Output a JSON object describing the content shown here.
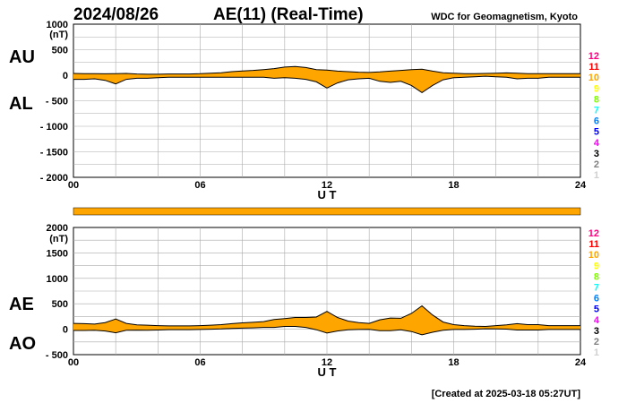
{
  "header": {
    "date": "2024/08/26",
    "title": "AE(11) (Real-Time)",
    "source": "WDC for Geomagnetism, Kyoto"
  },
  "footer": {
    "created": "[Created at 2025-03-18 05:27UT]"
  },
  "station_scale": {
    "labels": [
      "12",
      "11",
      "10",
      "9",
      "8",
      "7",
      "6",
      "5",
      "4",
      "3",
      "2",
      "1"
    ],
    "colors": [
      "#ff0080",
      "#ff0000",
      "#ffa500",
      "#ffff00",
      "#80ff00",
      "#00ffff",
      "#0080ff",
      "#0000ff",
      "#ff00ff",
      "#000000",
      "#808080",
      "#d0d0d0"
    ]
  },
  "colors": {
    "fill": "#ffa500",
    "line": "#000000",
    "grid": "#aaaaaa",
    "coverage_bar": "#ffa500"
  },
  "chart_data": [
    {
      "type": "area",
      "name": "AU/AL",
      "xlabel": "U T",
      "ylabel": "(nT)",
      "xlim": [
        0,
        24
      ],
      "ylim": [
        -2000,
        1000
      ],
      "xticks": [
        "00",
        "06",
        "12",
        "18",
        "24"
      ],
      "yticks": [
        "1000",
        "500",
        "0",
        "- 500",
        "- 1000",
        "- 1500",
        "- 2000"
      ],
      "series_labels": [
        "AU",
        "AL"
      ],
      "x": [
        0,
        0.5,
        1,
        1.5,
        2,
        2.5,
        3,
        3.5,
        4,
        4.5,
        5,
        5.5,
        6,
        6.5,
        7,
        7.5,
        8,
        8.5,
        9,
        9.5,
        10,
        10.5,
        11,
        11.5,
        12,
        12.5,
        13,
        13.5,
        14,
        14.5,
        15,
        15.5,
        16,
        16.5,
        17,
        17.5,
        18,
        18.5,
        19,
        19.5,
        20,
        20.5,
        21,
        21.5,
        22,
        22.5,
        23,
        23.5,
        24
      ],
      "upper": [
        35,
        30,
        30,
        28,
        30,
        35,
        25,
        20,
        20,
        25,
        25,
        25,
        30,
        40,
        50,
        70,
        85,
        95,
        110,
        130,
        160,
        170,
        150,
        110,
        100,
        80,
        70,
        60,
        55,
        65,
        80,
        95,
        110,
        120,
        80,
        50,
        40,
        30,
        30,
        35,
        40,
        45,
        40,
        30,
        30,
        30,
        30,
        30,
        30
      ],
      "lower": [
        -80,
        -80,
        -70,
        -100,
        -170,
        -80,
        -60,
        -60,
        -50,
        -40,
        -40,
        -40,
        -40,
        -40,
        -40,
        -40,
        -40,
        -40,
        -40,
        -60,
        -50,
        -60,
        -80,
        -130,
        -250,
        -150,
        -90,
        -70,
        -60,
        -120,
        -140,
        -120,
        -200,
        -340,
        -200,
        -90,
        -50,
        -40,
        -30,
        -20,
        -30,
        -40,
        -70,
        -60,
        -60,
        -40,
        -40,
        -40,
        -40
      ]
    },
    {
      "type": "area",
      "name": "AE/AO",
      "xlabel": "U T",
      "ylabel": "(nT)",
      "xlim": [
        0,
        24
      ],
      "ylim": [
        -500,
        2000
      ],
      "xticks": [
        "00",
        "06",
        "12",
        "18",
        "24"
      ],
      "yticks": [
        "2000",
        "1500",
        "1000",
        "500",
        "0",
        "- 500"
      ],
      "series_labels": [
        "AE",
        "AO"
      ],
      "x": [
        0,
        0.5,
        1,
        1.5,
        2,
        2.5,
        3,
        3.5,
        4,
        4.5,
        5,
        5.5,
        6,
        6.5,
        7,
        7.5,
        8,
        8.5,
        9,
        9.5,
        10,
        10.5,
        11,
        11.5,
        12,
        12.5,
        13,
        13.5,
        14,
        14.5,
        15,
        15.5,
        16,
        16.5,
        17,
        17.5,
        18,
        18.5,
        19,
        19.5,
        20,
        20.5,
        21,
        21.5,
        22,
        22.5,
        23,
        23.5,
        24
      ],
      "upper": [
        115,
        110,
        100,
        130,
        200,
        115,
        85,
        80,
        70,
        65,
        65,
        65,
        70,
        80,
        90,
        110,
        125,
        135,
        150,
        190,
        210,
        230,
        230,
        240,
        350,
        230,
        160,
        130,
        115,
        185,
        220,
        215,
        310,
        460,
        280,
        140,
        90,
        70,
        60,
        55,
        70,
        85,
        110,
        90,
        90,
        70,
        70,
        70,
        70
      ],
      "lower": [
        -25,
        -25,
        -20,
        -36,
        -70,
        -22,
        -18,
        -20,
        -15,
        -8,
        -8,
        -8,
        -5,
        0,
        5,
        15,
        22,
        27,
        35,
        35,
        55,
        55,
        35,
        -10,
        -75,
        -35,
        -10,
        -5,
        -3,
        -28,
        -30,
        -12,
        -45,
        -110,
        -60,
        -20,
        -5,
        -5,
        0,
        8,
        5,
        2,
        -15,
        -15,
        -15,
        -5,
        -5,
        -5,
        -5
      ]
    }
  ]
}
